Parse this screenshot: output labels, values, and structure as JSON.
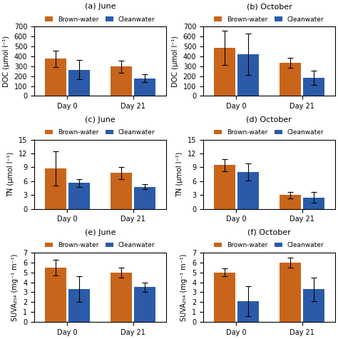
{
  "chart_data": [
    {
      "type": "bar",
      "title": "(a) June",
      "y_label": "DOC (μmol l⁻¹)",
      "categories": [
        "Day 0",
        "Day 21"
      ],
      "series": [
        {
          "name": "Brown-water",
          "color": "#C8651B",
          "values": [
            375,
            297
          ],
          "errors": [
            85,
            60
          ]
        },
        {
          "name": "Cleanwater",
          "color": "#2B5BA8",
          "values": [
            265,
            178
          ],
          "errors": [
            95,
            38
          ]
        }
      ],
      "ylim": [
        0,
        700
      ],
      "yticks": [
        0,
        100,
        200,
        300,
        400,
        500,
        600,
        700
      ],
      "legend": "upper center"
    },
    {
      "type": "bar",
      "title": "(b) October",
      "y_label": "DOC (μmol l⁻¹)",
      "categories": [
        "Day 0",
        "Day 21"
      ],
      "series": [
        {
          "name": "Brown-water",
          "color": "#C8651B",
          "values": [
            485,
            335
          ],
          "errors": [
            175,
            52
          ]
        },
        {
          "name": "Cleanwater",
          "color": "#2B5BA8",
          "values": [
            420,
            182
          ],
          "errors": [
            210,
            72
          ]
        }
      ],
      "ylim": [
        0,
        700
      ],
      "yticks": [
        0,
        100,
        200,
        300,
        400,
        500,
        600,
        700
      ],
      "legend": "upper center"
    },
    {
      "type": "bar",
      "title": "(c) June",
      "y_label": "TN (μmol l⁻¹)",
      "categories": [
        "Day 0",
        "Day 21"
      ],
      "series": [
        {
          "name": "Brown-water",
          "color": "#C8651B",
          "values": [
            8.8,
            7.8
          ],
          "errors": [
            3.7,
            1.3
          ]
        },
        {
          "name": "Cleanwater",
          "color": "#2B5BA8",
          "values": [
            5.6,
            4.8
          ],
          "errors": [
            0.9,
            0.5
          ]
        }
      ],
      "ylim": [
        0,
        15
      ],
      "yticks": [
        0,
        3,
        6,
        9,
        12,
        15
      ],
      "legend": "upper center"
    },
    {
      "type": "bar",
      "title": "(d) October",
      "y_label": "TN (μmol l⁻¹)",
      "categories": [
        "Day 0",
        "Day 21"
      ],
      "series": [
        {
          "name": "Brown-water",
          "color": "#C8651B",
          "values": [
            9.5,
            3.0
          ],
          "errors": [
            1.3,
            0.7
          ]
        },
        {
          "name": "Cleanwater",
          "color": "#2B5BA8",
          "values": [
            8.0,
            2.5
          ],
          "errors": [
            1.8,
            1.2
          ]
        }
      ],
      "ylim": [
        0,
        15
      ],
      "yticks": [
        0,
        3,
        6,
        9,
        12,
        15
      ],
      "legend": "upper center"
    },
    {
      "type": "bar",
      "title": "(e) June",
      "y_label": "SUVA₂₅₄ (mg⁻¹ m⁻¹)",
      "categories": [
        "Day 0",
        "Day 21"
      ],
      "series": [
        {
          "name": "Brown-water",
          "color": "#C8651B",
          "values": [
            5.5,
            5.0
          ],
          "errors": [
            0.8,
            0.5
          ]
        },
        {
          "name": "Cleanwater",
          "color": "#2B5BA8",
          "values": [
            3.3,
            3.5
          ],
          "errors": [
            1.3,
            0.5
          ]
        }
      ],
      "ylim": [
        0,
        7
      ],
      "yticks": [
        0,
        1,
        2,
        3,
        4,
        5,
        6,
        7
      ],
      "legend": "upper center"
    },
    {
      "type": "bar",
      "title": "(f) October",
      "y_label": "SUVA₂₅₄ (mg⁻¹ m⁻¹)",
      "categories": [
        "Day 0",
        "Day 21"
      ],
      "series": [
        {
          "name": "Brown-water",
          "color": "#C8651B",
          "values": [
            5.0,
            6.0
          ],
          "errors": [
            0.4,
            0.5
          ]
        },
        {
          "name": "Cleanwater",
          "color": "#2B5BA8",
          "values": [
            2.1,
            3.3
          ],
          "errors": [
            1.5,
            1.2
          ]
        }
      ],
      "ylim": [
        0,
        7
      ],
      "yticks": [
        0,
        1,
        2,
        3,
        4,
        5,
        6,
        7
      ],
      "legend": "upper center"
    }
  ]
}
